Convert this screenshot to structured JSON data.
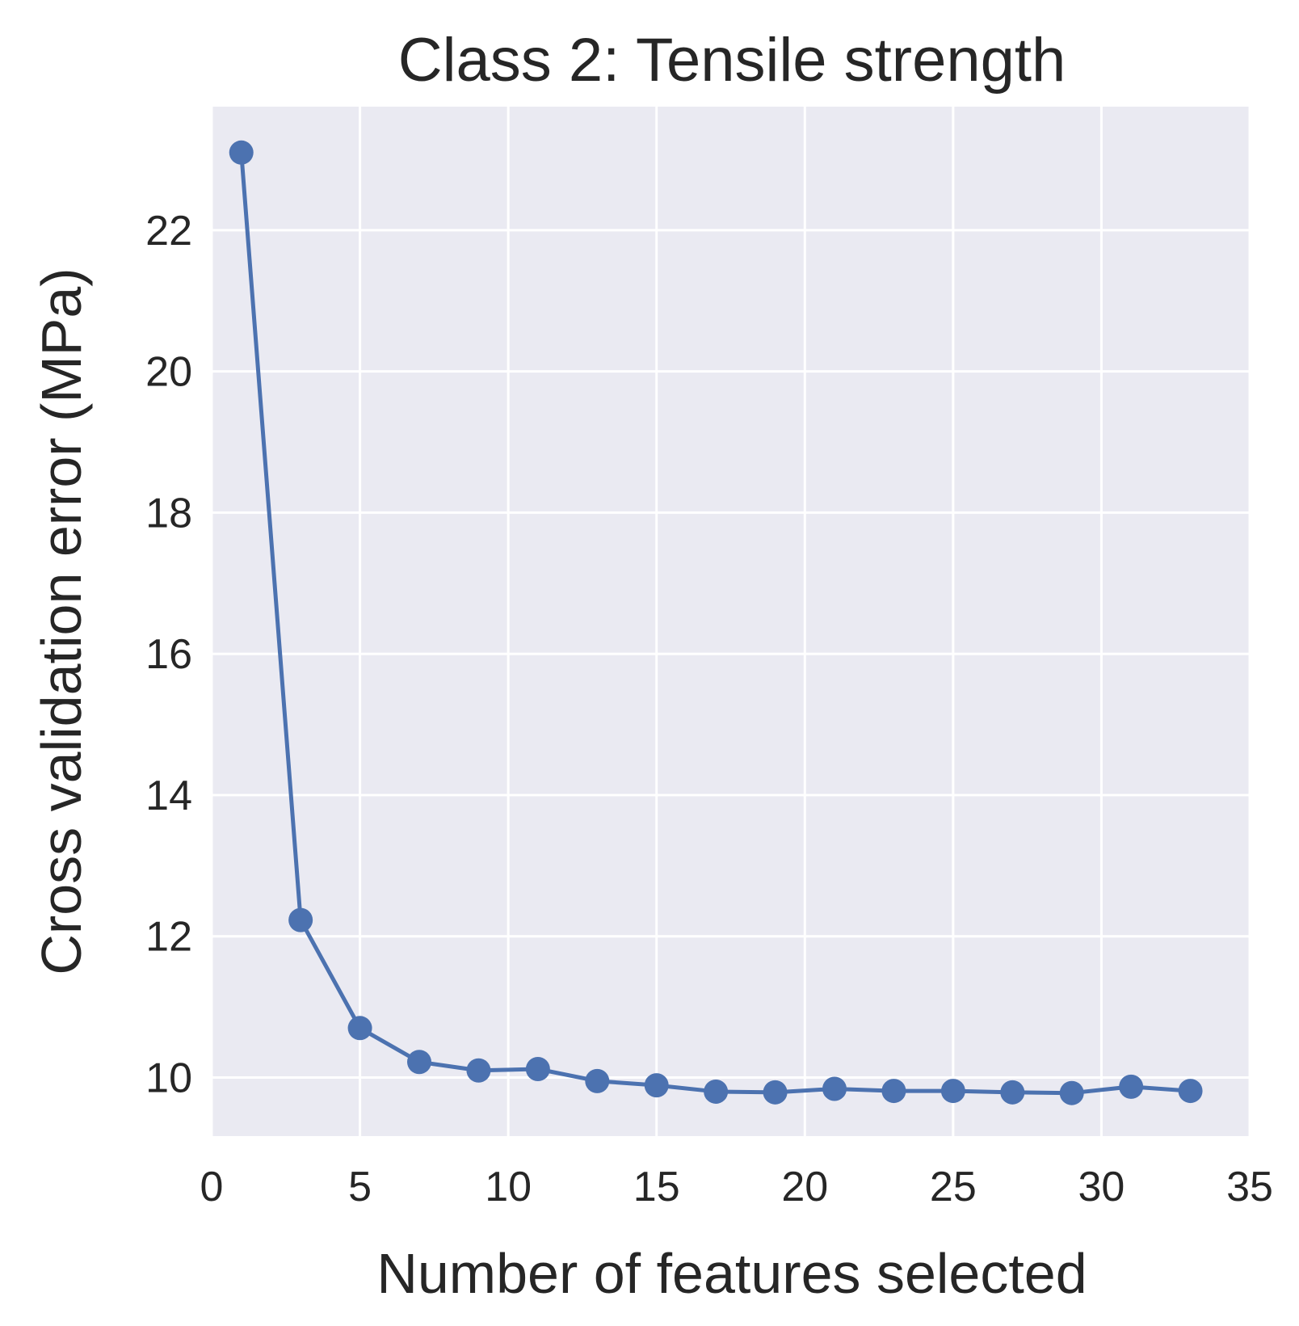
{
  "chart_data": {
    "type": "line",
    "title": "Class 2: Tensile strength",
    "xlabel": "Number of features selected",
    "ylabel": "Cross validation error (MPa)",
    "xlim": [
      0,
      35
    ],
    "ylim": [
      9.17,
      23.75
    ],
    "xticks": [
      0,
      5,
      10,
      15,
      20,
      25,
      30,
      35
    ],
    "yticks": [
      10,
      12,
      14,
      16,
      18,
      20,
      22
    ],
    "grid": true,
    "series": [
      {
        "color": "#4c72b0",
        "x": [
          1,
          3,
          5,
          7,
          9,
          11,
          13,
          15,
          17,
          19,
          21,
          23,
          25,
          27,
          29,
          31,
          33
        ],
        "y": [
          23.1,
          12.23,
          10.7,
          10.22,
          10.1,
          10.12,
          9.95,
          9.89,
          9.8,
          9.79,
          9.84,
          9.81,
          9.81,
          9.79,
          9.78,
          9.87,
          9.81
        ]
      }
    ]
  }
}
